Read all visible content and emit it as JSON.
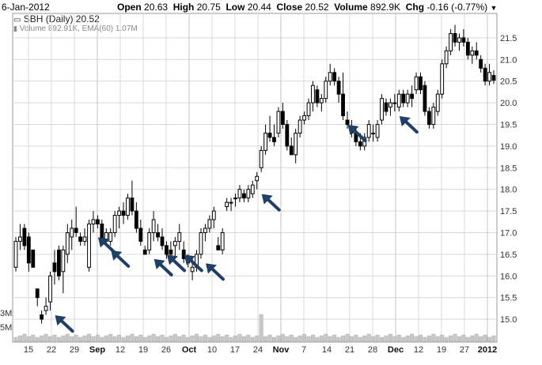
{
  "header": {
    "date": "6-Jan-2012",
    "open_label": "Open",
    "open_value": "20.63",
    "high_label": "High",
    "high_value": "20.75",
    "low_label": "Low",
    "low_value": "20.44",
    "close_label": "Close",
    "close_value": "20.52",
    "volume_label": "Volume",
    "volume_value": "892.9K",
    "chg_label": "Chg",
    "chg_value": "-0.16 (-0.77%)",
    "menu_icon": "dropdown-triangle-icon"
  },
  "legend": {
    "price_line": "SBH (Daily) 20.52",
    "volume_line": "Volume 892.91K, EMA(60) 1.07M",
    "price_icon": "candlestick-icon",
    "volume_icon": "volume-bars-icon"
  },
  "left_axis": {
    "label_upper": "3M",
    "label_lower": "5M"
  },
  "colors": {
    "up": "#ffffff",
    "down": "#000000",
    "outline": "#000000",
    "arrow": "#1f3f66",
    "grid": "#d9d9d9",
    "volume": "#c8c8c8"
  },
  "chart_data": {
    "type": "candlestick",
    "ylim": [
      14.8,
      21.9
    ],
    "yticks": [
      "15.0",
      "15.5",
      "16.0",
      "16.5",
      "17.0",
      "17.5",
      "18.0",
      "18.5",
      "19.0",
      "19.5",
      "20.0",
      "20.5",
      "21.0",
      "21.5"
    ],
    "xticks": [
      {
        "label": "15",
        "bold": false
      },
      {
        "label": "22",
        "bold": false
      },
      {
        "label": "29",
        "bold": false
      },
      {
        "label": "Sep",
        "bold": true
      },
      {
        "label": "12",
        "bold": false
      },
      {
        "label": "19",
        "bold": false
      },
      {
        "label": "26",
        "bold": false
      },
      {
        "label": "Oct",
        "bold": true
      },
      {
        "label": "10",
        "bold": false
      },
      {
        "label": "17",
        "bold": false
      },
      {
        "label": "24",
        "bold": false
      },
      {
        "label": "Nov",
        "bold": true
      },
      {
        "label": "7",
        "bold": false
      },
      {
        "label": "14",
        "bold": false
      },
      {
        "label": "21",
        "bold": false
      },
      {
        "label": "28",
        "bold": false
      },
      {
        "label": "Dec",
        "bold": true
      },
      {
        "label": "12",
        "bold": false
      },
      {
        "label": "19",
        "bold": false
      },
      {
        "label": "27",
        "bold": false
      },
      {
        "label": "2012",
        "bold": true
      }
    ],
    "candles": [
      [
        16.2,
        16.9,
        16.1,
        16.8
      ],
      [
        16.8,
        17.2,
        16.6,
        16.9
      ],
      [
        17.1,
        17.2,
        16.6,
        16.7
      ],
      [
        16.9,
        17.0,
        16.1,
        16.3
      ],
      [
        16.6,
        16.6,
        16.2,
        16.2
      ],
      [
        15.7,
        15.7,
        15.3,
        15.5
      ],
      [
        15.1,
        15.2,
        14.9,
        15.0
      ],
      [
        15.2,
        15.5,
        15.1,
        15.3
      ],
      [
        15.4,
        16.1,
        15.2,
        16.0
      ],
      [
        16.3,
        16.6,
        15.8,
        16.1
      ],
      [
        16.6,
        16.7,
        15.9,
        16.0
      ],
      [
        16.1,
        16.7,
        15.6,
        16.6
      ],
      [
        16.5,
        17.2,
        16.3,
        17.0
      ],
      [
        16.9,
        17.3,
        16.6,
        17.1
      ],
      [
        17.1,
        17.6,
        16.9,
        17.0
      ],
      [
        16.9,
        17.0,
        16.7,
        16.8
      ],
      [
        16.8,
        17.1,
        16.7,
        16.9
      ],
      [
        16.2,
        17.3,
        16.1,
        17.2
      ],
      [
        17.2,
        17.5,
        17.0,
        17.3
      ],
      [
        17.3,
        17.4,
        17.1,
        17.2
      ],
      [
        17.2,
        17.3,
        16.7,
        16.8
      ],
      [
        16.8,
        17.1,
        16.7,
        17.0
      ],
      [
        16.8,
        17.1,
        16.7,
        17.0
      ],
      [
        17.0,
        17.5,
        16.9,
        17.4
      ],
      [
        17.4,
        17.6,
        17.1,
        17.5
      ],
      [
        17.5,
        17.7,
        17.2,
        17.4
      ],
      [
        17.4,
        17.9,
        17.3,
        17.8
      ],
      [
        17.8,
        18.2,
        17.4,
        17.5
      ],
      [
        17.5,
        17.7,
        17.0,
        17.1
      ],
      [
        17.1,
        17.3,
        16.7,
        16.8
      ],
      [
        16.6,
        16.7,
        16.5,
        16.5
      ],
      [
        16.6,
        17.1,
        16.5,
        17.0
      ],
      [
        17.0,
        17.5,
        16.8,
        17.3
      ],
      [
        17.0,
        17.2,
        16.8,
        16.9
      ],
      [
        16.9,
        17.1,
        16.6,
        16.7
      ],
      [
        16.7,
        16.8,
        16.4,
        16.5
      ],
      [
        16.6,
        16.8,
        16.4,
        16.5
      ],
      [
        16.7,
        16.9,
        16.4,
        16.8
      ],
      [
        16.8,
        17.2,
        16.6,
        17.0
      ],
      [
        16.6,
        16.8,
        16.3,
        16.4
      ],
      [
        16.4,
        16.5,
        16.2,
        16.3
      ],
      [
        16.1,
        16.4,
        15.9,
        16.2
      ],
      [
        16.2,
        16.6,
        16.1,
        16.5
      ],
      [
        16.5,
        17.1,
        16.4,
        17.0
      ],
      [
        17.0,
        17.2,
        16.8,
        17.1
      ],
      [
        17.1,
        17.4,
        17.0,
        17.3
      ],
      [
        17.3,
        17.6,
        17.1,
        17.5
      ],
      [
        16.7,
        16.9,
        16.6,
        16.6
      ],
      [
        16.6,
        17.1,
        16.5,
        17.0
      ],
      [
        17.6,
        17.8,
        17.5,
        17.7
      ],
      [
        17.7,
        17.8,
        17.5,
        17.7
      ],
      [
        17.8,
        17.9,
        17.6,
        17.8
      ],
      [
        17.8,
        18.1,
        17.7,
        18.0
      ],
      [
        17.9,
        18.0,
        17.7,
        17.8
      ],
      [
        17.8,
        18.1,
        17.7,
        18.0
      ],
      [
        17.9,
        18.2,
        17.8,
        18.1
      ],
      [
        18.2,
        18.4,
        18.0,
        18.3
      ],
      [
        18.5,
        19.0,
        18.4,
        18.9
      ],
      [
        18.9,
        19.5,
        18.8,
        19.3
      ],
      [
        19.3,
        19.7,
        19.1,
        19.2
      ],
      [
        19.2,
        19.5,
        19.0,
        19.1
      ],
      [
        19.3,
        19.9,
        19.2,
        19.8
      ],
      [
        19.8,
        20.0,
        19.4,
        19.5
      ],
      [
        19.5,
        19.6,
        18.9,
        19.0
      ],
      [
        19.0,
        19.2,
        18.8,
        18.8
      ],
      [
        18.8,
        19.4,
        18.6,
        19.3
      ],
      [
        19.3,
        19.7,
        19.2,
        19.6
      ],
      [
        19.6,
        19.8,
        19.5,
        19.7
      ],
      [
        19.7,
        20.1,
        19.6,
        20.0
      ],
      [
        20.0,
        20.5,
        19.8,
        20.4
      ],
      [
        20.3,
        20.4,
        19.9,
        20.0
      ],
      [
        20.0,
        20.2,
        19.8,
        20.1
      ],
      [
        20.1,
        20.6,
        20.0,
        20.5
      ],
      [
        20.5,
        20.9,
        20.4,
        20.7
      ],
      [
        20.7,
        20.8,
        20.4,
        20.5
      ],
      [
        20.5,
        20.6,
        20.0,
        20.2
      ],
      [
        20.2,
        20.7,
        19.6,
        19.7
      ],
      [
        19.6,
        19.8,
        19.4,
        19.5
      ],
      [
        19.4,
        19.6,
        19.2,
        19.3
      ],
      [
        19.3,
        19.4,
        19.0,
        19.1
      ],
      [
        19.1,
        19.3,
        18.9,
        19.0
      ],
      [
        19.0,
        19.3,
        18.9,
        19.2
      ],
      [
        19.2,
        19.6,
        19.1,
        19.5
      ],
      [
        19.3,
        19.5,
        19.1,
        19.3
      ],
      [
        19.2,
        19.6,
        19.1,
        19.5
      ],
      [
        19.6,
        20.2,
        19.5,
        20.1
      ],
      [
        20.0,
        20.1,
        19.7,
        19.8
      ],
      [
        19.9,
        20.1,
        19.7,
        20.0
      ],
      [
        20.0,
        20.2,
        19.8,
        20.0
      ],
      [
        19.9,
        20.3,
        19.8,
        20.2
      ],
      [
        20.2,
        20.3,
        19.9,
        20.0
      ],
      [
        20.0,
        20.3,
        19.9,
        20.2
      ],
      [
        20.2,
        20.4,
        19.9,
        20.1
      ],
      [
        20.3,
        20.7,
        20.2,
        20.6
      ],
      [
        20.6,
        20.7,
        20.2,
        20.3
      ],
      [
        20.4,
        20.5,
        19.7,
        19.8
      ],
      [
        19.8,
        19.9,
        19.4,
        19.5
      ],
      [
        19.5,
        20.0,
        19.4,
        19.9
      ],
      [
        19.8,
        20.3,
        19.7,
        20.2
      ],
      [
        20.2,
        21.0,
        20.1,
        20.9
      ],
      [
        20.9,
        21.3,
        20.8,
        21.2
      ],
      [
        21.2,
        21.7,
        21.1,
        21.6
      ],
      [
        21.6,
        21.8,
        21.3,
        21.4
      ],
      [
        21.4,
        21.6,
        21.2,
        21.5
      ],
      [
        21.5,
        21.7,
        21.3,
        21.4
      ],
      [
        21.4,
        21.5,
        21.0,
        21.1
      ],
      [
        21.1,
        21.3,
        20.9,
        21.2
      ],
      [
        21.2,
        21.4,
        21.0,
        21.1
      ],
      [
        21.0,
        21.1,
        20.7,
        20.8
      ],
      [
        20.8,
        20.9,
        20.4,
        20.5
      ],
      [
        20.5,
        20.9,
        20.4,
        20.7
      ],
      [
        20.63,
        20.75,
        20.44,
        20.52
      ]
    ],
    "volume_peak_index": 57,
    "arrow_indices": [
      8,
      18,
      21,
      31,
      34,
      38,
      43,
      56,
      76,
      88
    ]
  }
}
